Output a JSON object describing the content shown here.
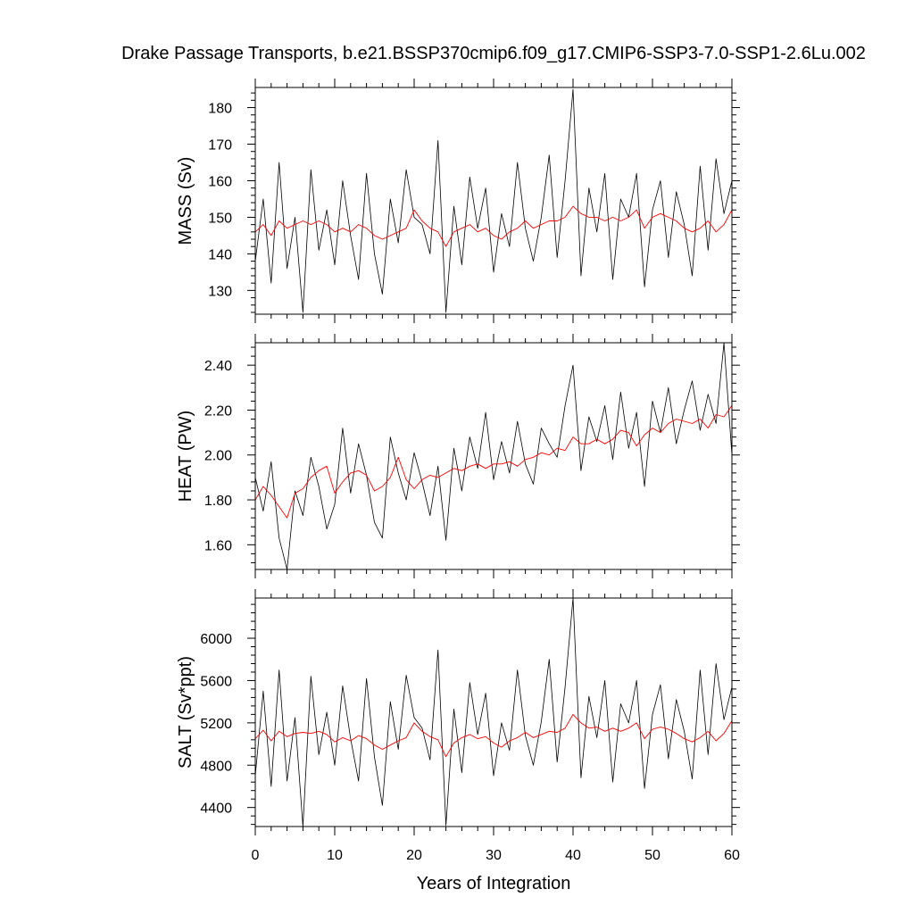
{
  "title": "Drake Passage Transports, b.e21.BSSP370cmip6.f09_g17.CMIP6-SSP3-7.0-SSP1-2.6Lu.002",
  "xlabel": "Years of Integration",
  "colors": {
    "raw_line": "#000000",
    "smooth_line": "#ff0000",
    "frame": "#000000"
  },
  "chart_data": [
    {
      "type": "line",
      "ylabel": "MASS (Sv)",
      "xlim": [
        0,
        60
      ],
      "ylim": [
        123.5,
        185.5
      ],
      "yticks": [
        130,
        140,
        150,
        160,
        170,
        180
      ],
      "ytick_labels": [
        "130",
        "140",
        "150",
        "160",
        "170",
        "180"
      ],
      "xticks": [
        0,
        10,
        20,
        30,
        40,
        50,
        60
      ],
      "xtick_labels": [],
      "series": [
        {
          "style": "raw",
          "x": [
            0,
            1,
            2,
            3,
            4,
            5,
            6,
            7,
            8,
            9,
            10,
            11,
            12,
            13,
            14,
            15,
            16,
            17,
            18,
            19,
            20,
            21,
            22,
            23,
            24,
            25,
            26,
            27,
            28,
            29,
            30,
            31,
            32,
            33,
            34,
            35,
            36,
            37,
            38,
            39,
            40,
            41,
            42,
            43,
            44,
            45,
            46,
            47,
            48,
            49,
            50,
            51,
            52,
            53,
            54,
            55,
            56,
            57,
            58,
            59,
            60
          ],
          "y": [
            138,
            155,
            132,
            165,
            136,
            150,
            124,
            163,
            141,
            152,
            137,
            160,
            145,
            133,
            162,
            140,
            129,
            155,
            143,
            163,
            150,
            148,
            140,
            171,
            124,
            153,
            137,
            161,
            147,
            158,
            135,
            151,
            142,
            165,
            147,
            138,
            150,
            167,
            139,
            160,
            185,
            134,
            158,
            146,
            162,
            133,
            155,
            150,
            162,
            131,
            152,
            160,
            139,
            157,
            148,
            134,
            164,
            141,
            166,
            151,
            160
          ]
        },
        {
          "style": "smooth",
          "x": [
            0,
            1,
            2,
            3,
            4,
            5,
            6,
            7,
            8,
            9,
            10,
            11,
            12,
            13,
            14,
            15,
            16,
            17,
            18,
            19,
            20,
            21,
            22,
            23,
            24,
            25,
            26,
            27,
            28,
            29,
            30,
            31,
            32,
            33,
            34,
            35,
            36,
            37,
            38,
            39,
            40,
            41,
            42,
            43,
            44,
            45,
            46,
            47,
            48,
            49,
            50,
            51,
            52,
            53,
            54,
            55,
            56,
            57,
            58,
            59,
            60
          ],
          "y": [
            146,
            148,
            145,
            149,
            147,
            148,
            149,
            148,
            149,
            148,
            146,
            147,
            146,
            148,
            147,
            145,
            144,
            145,
            146,
            147,
            152,
            149,
            147,
            146,
            142,
            146,
            147,
            148,
            146,
            147,
            145,
            144,
            146,
            147,
            149,
            147,
            148,
            149,
            149,
            150,
            153,
            151,
            150,
            150,
            149,
            150,
            149,
            150,
            152,
            147,
            150,
            151,
            150,
            149,
            147,
            146,
            147,
            149,
            146,
            148,
            152
          ]
        }
      ]
    },
    {
      "type": "line",
      "ylabel": "HEAT (PW)",
      "xlim": [
        0,
        60
      ],
      "ylim": [
        1.49,
        2.5
      ],
      "yticks": [
        1.6,
        1.8,
        2.0,
        2.2,
        2.4
      ],
      "ytick_labels": [
        "1.60",
        "1.80",
        "2.00",
        "2.20",
        "2.40"
      ],
      "xticks": [
        0,
        10,
        20,
        30,
        40,
        50,
        60
      ],
      "xtick_labels": [],
      "series": [
        {
          "style": "raw",
          "x": [
            0,
            1,
            2,
            3,
            4,
            5,
            6,
            7,
            8,
            9,
            10,
            11,
            12,
            13,
            14,
            15,
            16,
            17,
            18,
            19,
            20,
            21,
            22,
            23,
            24,
            25,
            26,
            27,
            28,
            29,
            30,
            31,
            32,
            33,
            34,
            35,
            36,
            37,
            38,
            39,
            40,
            41,
            42,
            43,
            44,
            45,
            46,
            47,
            48,
            49,
            50,
            51,
            52,
            53,
            54,
            55,
            56,
            57,
            58,
            59,
            60
          ],
          "y": [
            1.9,
            1.75,
            1.97,
            1.63,
            1.49,
            1.84,
            1.73,
            1.99,
            1.86,
            1.67,
            1.78,
            2.12,
            1.83,
            2.05,
            1.91,
            1.7,
            1.63,
            2.08,
            1.92,
            1.8,
            2.01,
            1.88,
            1.73,
            1.95,
            1.62,
            2.03,
            1.84,
            2.08,
            1.94,
            2.19,
            1.89,
            2.06,
            1.92,
            2.15,
            1.96,
            1.87,
            2.12,
            2.05,
            1.99,
            2.22,
            2.4,
            1.93,
            2.17,
            2.06,
            2.22,
            1.98,
            2.28,
            2.03,
            2.19,
            1.86,
            2.24,
            2.1,
            2.3,
            2.05,
            2.2,
            2.33,
            2.11,
            2.27,
            2.14,
            2.5,
            2.0
          ]
        },
        {
          "style": "smooth",
          "x": [
            0,
            1,
            2,
            3,
            4,
            5,
            6,
            7,
            8,
            9,
            10,
            11,
            12,
            13,
            14,
            15,
            16,
            17,
            18,
            19,
            20,
            21,
            22,
            23,
            24,
            25,
            26,
            27,
            28,
            29,
            30,
            31,
            32,
            33,
            34,
            35,
            36,
            37,
            38,
            39,
            40,
            41,
            42,
            43,
            44,
            45,
            46,
            47,
            48,
            49,
            50,
            51,
            52,
            53,
            54,
            55,
            56,
            57,
            58,
            59,
            60
          ],
          "y": [
            1.8,
            1.86,
            1.82,
            1.77,
            1.72,
            1.83,
            1.85,
            1.9,
            1.93,
            1.95,
            1.83,
            1.88,
            1.92,
            1.93,
            1.91,
            1.84,
            1.86,
            1.9,
            1.99,
            1.89,
            1.85,
            1.89,
            1.91,
            1.9,
            1.92,
            1.94,
            1.93,
            1.95,
            1.96,
            1.94,
            1.96,
            1.96,
            1.97,
            1.95,
            1.98,
            1.99,
            2.01,
            2.0,
            2.03,
            2.02,
            2.08,
            2.05,
            2.05,
            2.07,
            2.05,
            2.07,
            2.11,
            2.1,
            2.04,
            2.09,
            2.12,
            2.1,
            2.14,
            2.16,
            2.15,
            2.14,
            2.16,
            2.12,
            2.18,
            2.17,
            2.22
          ]
        }
      ]
    },
    {
      "type": "line",
      "ylabel": "SALT (Sv*ppt)",
      "xlim": [
        0,
        60
      ],
      "ylim": [
        4220,
        6380
      ],
      "yticks": [
        4400,
        4800,
        5200,
        5600,
        6000
      ],
      "ytick_labels": [
        "4400",
        "4800",
        "5200",
        "5600",
        "6000"
      ],
      "xticks": [
        0,
        10,
        20,
        30,
        40,
        50,
        60
      ],
      "xtick_labels": [
        "0",
        "10",
        "20",
        "30",
        "40",
        "50",
        "60"
      ],
      "series": [
        {
          "style": "raw",
          "x": [
            0,
            1,
            2,
            3,
            4,
            5,
            6,
            7,
            8,
            9,
            10,
            11,
            12,
            13,
            14,
            15,
            16,
            17,
            18,
            19,
            20,
            21,
            22,
            23,
            24,
            25,
            26,
            27,
            28,
            29,
            30,
            31,
            32,
            33,
            34,
            35,
            36,
            37,
            38,
            39,
            40,
            41,
            42,
            43,
            44,
            45,
            46,
            47,
            48,
            49,
            50,
            51,
            52,
            53,
            54,
            55,
            56,
            57,
            58,
            59,
            60
          ],
          "y": [
            4700,
            5500,
            4600,
            5700,
            4650,
            5250,
            4220,
            5640,
            4900,
            5300,
            4800,
            5550,
            5050,
            4650,
            5620,
            4880,
            4420,
            5400,
            4950,
            5650,
            5250,
            5150,
            4850,
            5890,
            4230,
            5330,
            4730,
            5580,
            5090,
            5480,
            4700,
            5200,
            4940,
            5700,
            5080,
            4800,
            5210,
            5800,
            4830,
            5540,
            6380,
            4680,
            5450,
            5060,
            5600,
            4640,
            5380,
            5200,
            5600,
            4580,
            5280,
            5560,
            4860,
            5420,
            5120,
            4670,
            5700,
            4900,
            5760,
            5230,
            5540
          ]
        },
        {
          "style": "smooth",
          "x": [
            0,
            1,
            2,
            3,
            4,
            5,
            6,
            7,
            8,
            9,
            10,
            11,
            12,
            13,
            14,
            15,
            16,
            17,
            18,
            19,
            20,
            21,
            22,
            23,
            24,
            25,
            26,
            27,
            28,
            29,
            30,
            31,
            32,
            33,
            34,
            35,
            36,
            37,
            38,
            39,
            40,
            41,
            42,
            43,
            44,
            45,
            46,
            47,
            48,
            49,
            50,
            51,
            52,
            53,
            54,
            55,
            56,
            57,
            58,
            59,
            60
          ],
          "y": [
            5050,
            5130,
            5030,
            5120,
            5070,
            5100,
            5110,
            5100,
            5120,
            5090,
            5020,
            5060,
            5030,
            5080,
            5050,
            4990,
            4950,
            4990,
            5030,
            5060,
            5200,
            5120,
            5070,
            5040,
            4880,
            5010,
            5060,
            5090,
            5050,
            5070,
            5010,
            4970,
            5030,
            5060,
            5110,
            5060,
            5090,
            5120,
            5110,
            5150,
            5280,
            5200,
            5150,
            5160,
            5120,
            5150,
            5120,
            5150,
            5200,
            5050,
            5140,
            5160,
            5140,
            5100,
            5050,
            5020,
            5060,
            5120,
            5030,
            5100,
            5220
          ]
        }
      ]
    }
  ]
}
